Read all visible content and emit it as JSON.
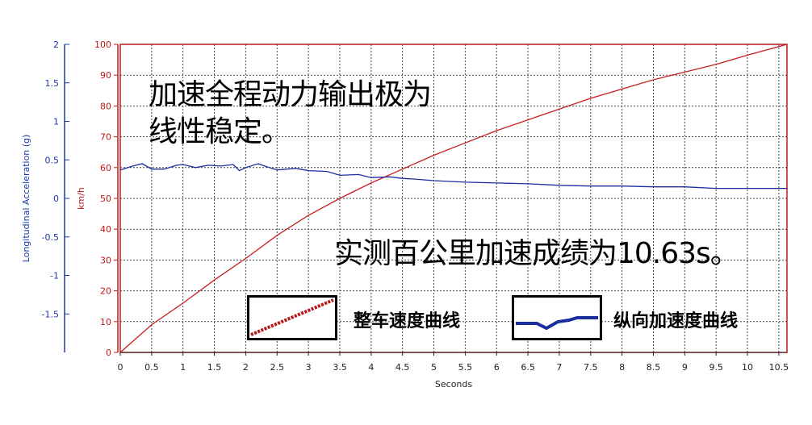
{
  "chart_data": {
    "type": "line",
    "xlabel": "Seconds",
    "ylabel_left": "Longitudinal Acceleration (g)",
    "ylabel_right": "km/h",
    "xlim": [
      0,
      10.63
    ],
    "ylim_left": [
      -2,
      2
    ],
    "ylim_right": [
      0,
      100
    ],
    "x_ticks": [
      "0",
      "0.5",
      "1",
      "1.5",
      "2",
      "2.5",
      "3",
      "3.5",
      "4",
      "4.5",
      "5",
      "5.5",
      "6",
      "6.5",
      "7",
      "7.5",
      "8",
      "8.5",
      "9",
      "9.5",
      "10",
      "10.5"
    ],
    "left_ticks": [
      "2",
      "1.5",
      "1",
      "0.5",
      "0",
      "-0.5",
      "-1",
      "-1.5"
    ],
    "right_ticks": [
      "100",
      "90",
      "80",
      "70",
      "60",
      "50",
      "40",
      "30",
      "20",
      "10",
      "0"
    ],
    "grid": true,
    "series": [
      {
        "name": "整车速度曲线",
        "axis": "right",
        "color": "#c81e1e",
        "x": [
          0,
          0.5,
          1,
          1.5,
          2,
          2.5,
          3,
          3.5,
          4,
          4.5,
          5,
          5.5,
          6,
          6.5,
          7,
          7.5,
          8,
          8.5,
          9,
          9.5,
          10,
          10.63
        ],
        "y": [
          0,
          9,
          16,
          23.5,
          30.5,
          38,
          44.5,
          50,
          55,
          59.5,
          64,
          68,
          72,
          75.5,
          79,
          82.5,
          85.5,
          88.5,
          91,
          93.5,
          96.5,
          100
        ]
      },
      {
        "name": "纵向加速度曲线",
        "axis": "left",
        "color": "#1a2ea0",
        "x": [
          0,
          0.2,
          0.35,
          0.5,
          0.7,
          0.9,
          1.0,
          1.2,
          1.4,
          1.6,
          1.8,
          1.9,
          2.0,
          2.2,
          2.3,
          2.5,
          2.8,
          3.0,
          3.3,
          3.5,
          3.8,
          4.0,
          4.3,
          4.5,
          4.7,
          5.0,
          5.5,
          6.0,
          6.5,
          7.0,
          7.5,
          8.0,
          8.5,
          9.0,
          9.5,
          10.0,
          10.63
        ],
        "y": [
          0.37,
          0.42,
          0.45,
          0.38,
          0.38,
          0.43,
          0.44,
          0.4,
          0.43,
          0.42,
          0.44,
          0.36,
          0.4,
          0.45,
          0.42,
          0.37,
          0.39,
          0.36,
          0.35,
          0.3,
          0.31,
          0.27,
          0.28,
          0.26,
          0.25,
          0.23,
          0.21,
          0.2,
          0.19,
          0.17,
          0.16,
          0.16,
          0.15,
          0.15,
          0.13,
          0.13,
          0.13
        ]
      }
    ],
    "annotations": [
      "加速全程动力输出极为",
      "线性稳定。",
      "实测百公里加速成绩为10.63s。"
    ]
  }
}
